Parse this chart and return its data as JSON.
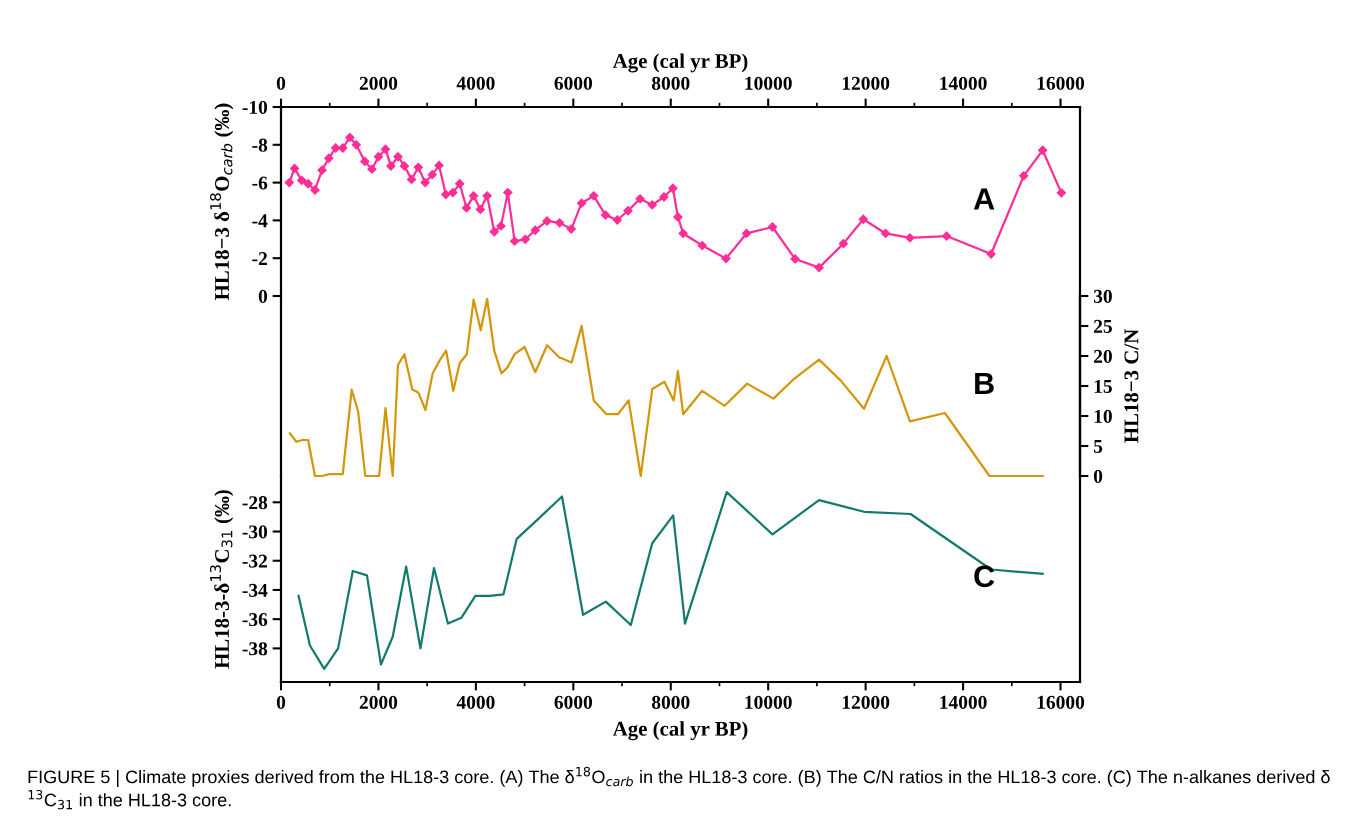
{
  "chart_data": [
    {
      "type": "line",
      "xlabel": "Age (cal yr BP)",
      "xlim": [
        0,
        16400
      ],
      "xticks": [
        0,
        2000,
        4000,
        6000,
        8000,
        10000,
        12000,
        14000,
        16000
      ],
      "ylabel": "HL18−3 δ$^{18}$O$_{carb}$ (‰)",
      "ylim": [
        0,
        -10
      ],
      "yticks": [
        -10,
        -8,
        -6,
        -4,
        -2,
        0
      ],
      "grid": false,
      "series": [
        {
          "name": "A",
          "color": "#ff2d96",
          "marker": "diamond",
          "x": [
            170,
            279,
            426,
            557,
            697,
            843,
            982,
            1121,
            1268,
            1414,
            1545,
            1721,
            1867,
            2000,
            2145,
            2256,
            2401,
            2533,
            2680,
            2819,
            2959,
            3104,
            3244,
            3383,
            3528,
            3668,
            3807,
            3953,
            4092,
            4231,
            4377,
            4516,
            4655,
            4795,
            5014,
            5219,
            5461,
            5717,
            5958,
            6170,
            6419,
            6661,
            6903,
            7122,
            7370,
            7620,
            7860,
            8044,
            8147,
            8255,
            8645,
            9134,
            9555,
            10088,
            10552,
            11044,
            11543,
            11952,
            12410,
            12909,
            13661,
            14575,
            15245,
            15634,
            16017
          ],
          "values": [
            -6.0,
            -6.75,
            -6.12,
            -5.94,
            -5.61,
            -6.66,
            -7.29,
            -7.83,
            -7.83,
            -8.39,
            -8.0,
            -7.12,
            -6.71,
            -7.37,
            -7.77,
            -6.88,
            -7.37,
            -6.88,
            -6.17,
            -6.81,
            -6.0,
            -6.42,
            -6.91,
            -5.37,
            -5.47,
            -5.94,
            -4.66,
            -5.3,
            -4.58,
            -5.3,
            -3.4,
            -3.71,
            -5.47,
            -2.9,
            -3.0,
            -3.48,
            -3.97,
            -3.87,
            -3.54,
            -4.91,
            -5.3,
            -4.28,
            -4.02,
            -4.51,
            -5.14,
            -4.82,
            -5.24,
            -5.7,
            -4.18,
            -3.31,
            -2.67,
            -1.98,
            -3.31,
            -3.65,
            -1.96,
            -1.5,
            -2.77,
            -4.06,
            -3.31,
            -3.08,
            -3.17,
            -2.22,
            -6.36,
            -7.71,
            -5.46
          ]
        }
      ]
    },
    {
      "type": "line",
      "xlim": [
        0,
        16400
      ],
      "y2label": "HL18−3 C/N",
      "y2lim": [
        0,
        30
      ],
      "y2ticks": [
        0,
        5,
        10,
        15,
        20,
        25,
        30
      ],
      "tick_labels": "y",
      "grid": false,
      "series": [
        {
          "name": "B",
          "color": "#d4960a",
          "axis": "y2",
          "x": [
            184,
            316,
            440,
            557,
            697,
            843,
            990,
            1268,
            1451,
            1582,
            1729,
            2014,
            2145,
            2293,
            2401,
            2533,
            2695,
            2819,
            2965,
            3113,
            3244,
            3389,
            3536,
            3668,
            3814,
            3953,
            4100,
            4231,
            4377,
            4524,
            4649,
            4795,
            5000,
            5219,
            5461,
            5709,
            5965,
            6170,
            6419,
            6681,
            6916,
            7136,
            7384,
            7620,
            7870,
            8060,
            8147,
            8255,
            8645,
            9106,
            9568,
            10108,
            10532,
            11044,
            11489,
            11966,
            12431,
            12909,
            13626,
            14542,
            15634
          ],
          "values": [
            7.1,
            5.7,
            6.0,
            6.0,
            0,
            0,
            0.3,
            0.3,
            14.4,
            10.8,
            0,
            0,
            11.3,
            0,
            18.5,
            20.3,
            14.4,
            13.9,
            11.0,
            17.1,
            19.1,
            20.9,
            14.2,
            18.8,
            20.3,
            29.4,
            24.3,
            29.5,
            20.9,
            17.1,
            18.1,
            20.3,
            21.5,
            17.3,
            21.8,
            19.8,
            18.9,
            25.0,
            12.6,
            10.3,
            10.3,
            12.6,
            0,
            14.5,
            15.7,
            12.6,
            17.5,
            10.3,
            14.2,
            11.7,
            15.4,
            12.9,
            16.2,
            19.4,
            15.9,
            11.2,
            20.0,
            9.1,
            10.5,
            0,
            0
          ]
        }
      ]
    },
    {
      "type": "line",
      "xlabel": "Age (cal yr BP)",
      "xlim": [
        0,
        16400
      ],
      "xticks": [
        0,
        2000,
        4000,
        6000,
        8000,
        10000,
        12000,
        14000,
        16000
      ],
      "ylabel": "HL18-3-δ$^{13}$C$_{31}$ (‰)",
      "ylim": [
        -40.3,
        -26.2
      ],
      "yticks": [
        -38,
        -36,
        -34,
        -32,
        -30,
        -28
      ],
      "grid": false,
      "series": [
        {
          "name": "C",
          "color": "#137a6c",
          "x": [
            360,
            594,
            887,
            1172,
            1473,
            1764,
            2051,
            2293,
            2569,
            2862,
            3141,
            3426,
            3705,
            3989,
            4282,
            4567,
            4838,
            5293,
            5768,
            6200,
            6667,
            7180,
            7620,
            8050,
            8292,
            9149,
            10088,
            11044,
            11966,
            12923,
            14575,
            15634
          ],
          "values": [
            -34.4,
            -37.8,
            -39.4,
            -38.0,
            -32.7,
            -33.0,
            -39.1,
            -37.2,
            -32.4,
            -38.0,
            -32.5,
            -36.3,
            -35.9,
            -34.4,
            -34.4,
            -34.3,
            -30.5,
            -29.1,
            -27.6,
            -35.7,
            -34.8,
            -36.4,
            -30.8,
            -28.9,
            -36.3,
            -27.3,
            -30.2,
            -27.85,
            -28.65,
            -28.8,
            -32.6,
            -32.9
          ]
        }
      ],
      "annotations": [
        "FIGURE 5 | Climate proxies derived from the HL18-3 core. (A) The δ$^{18}$O$_{carb}$ in the HL18-3 core. (B) The C/N ratios in the HL18-3 core. (C) The n-alkanes derived δ $^{13}$C$_{31}$ in the HL18-3 core."
      ]
    }
  ]
}
